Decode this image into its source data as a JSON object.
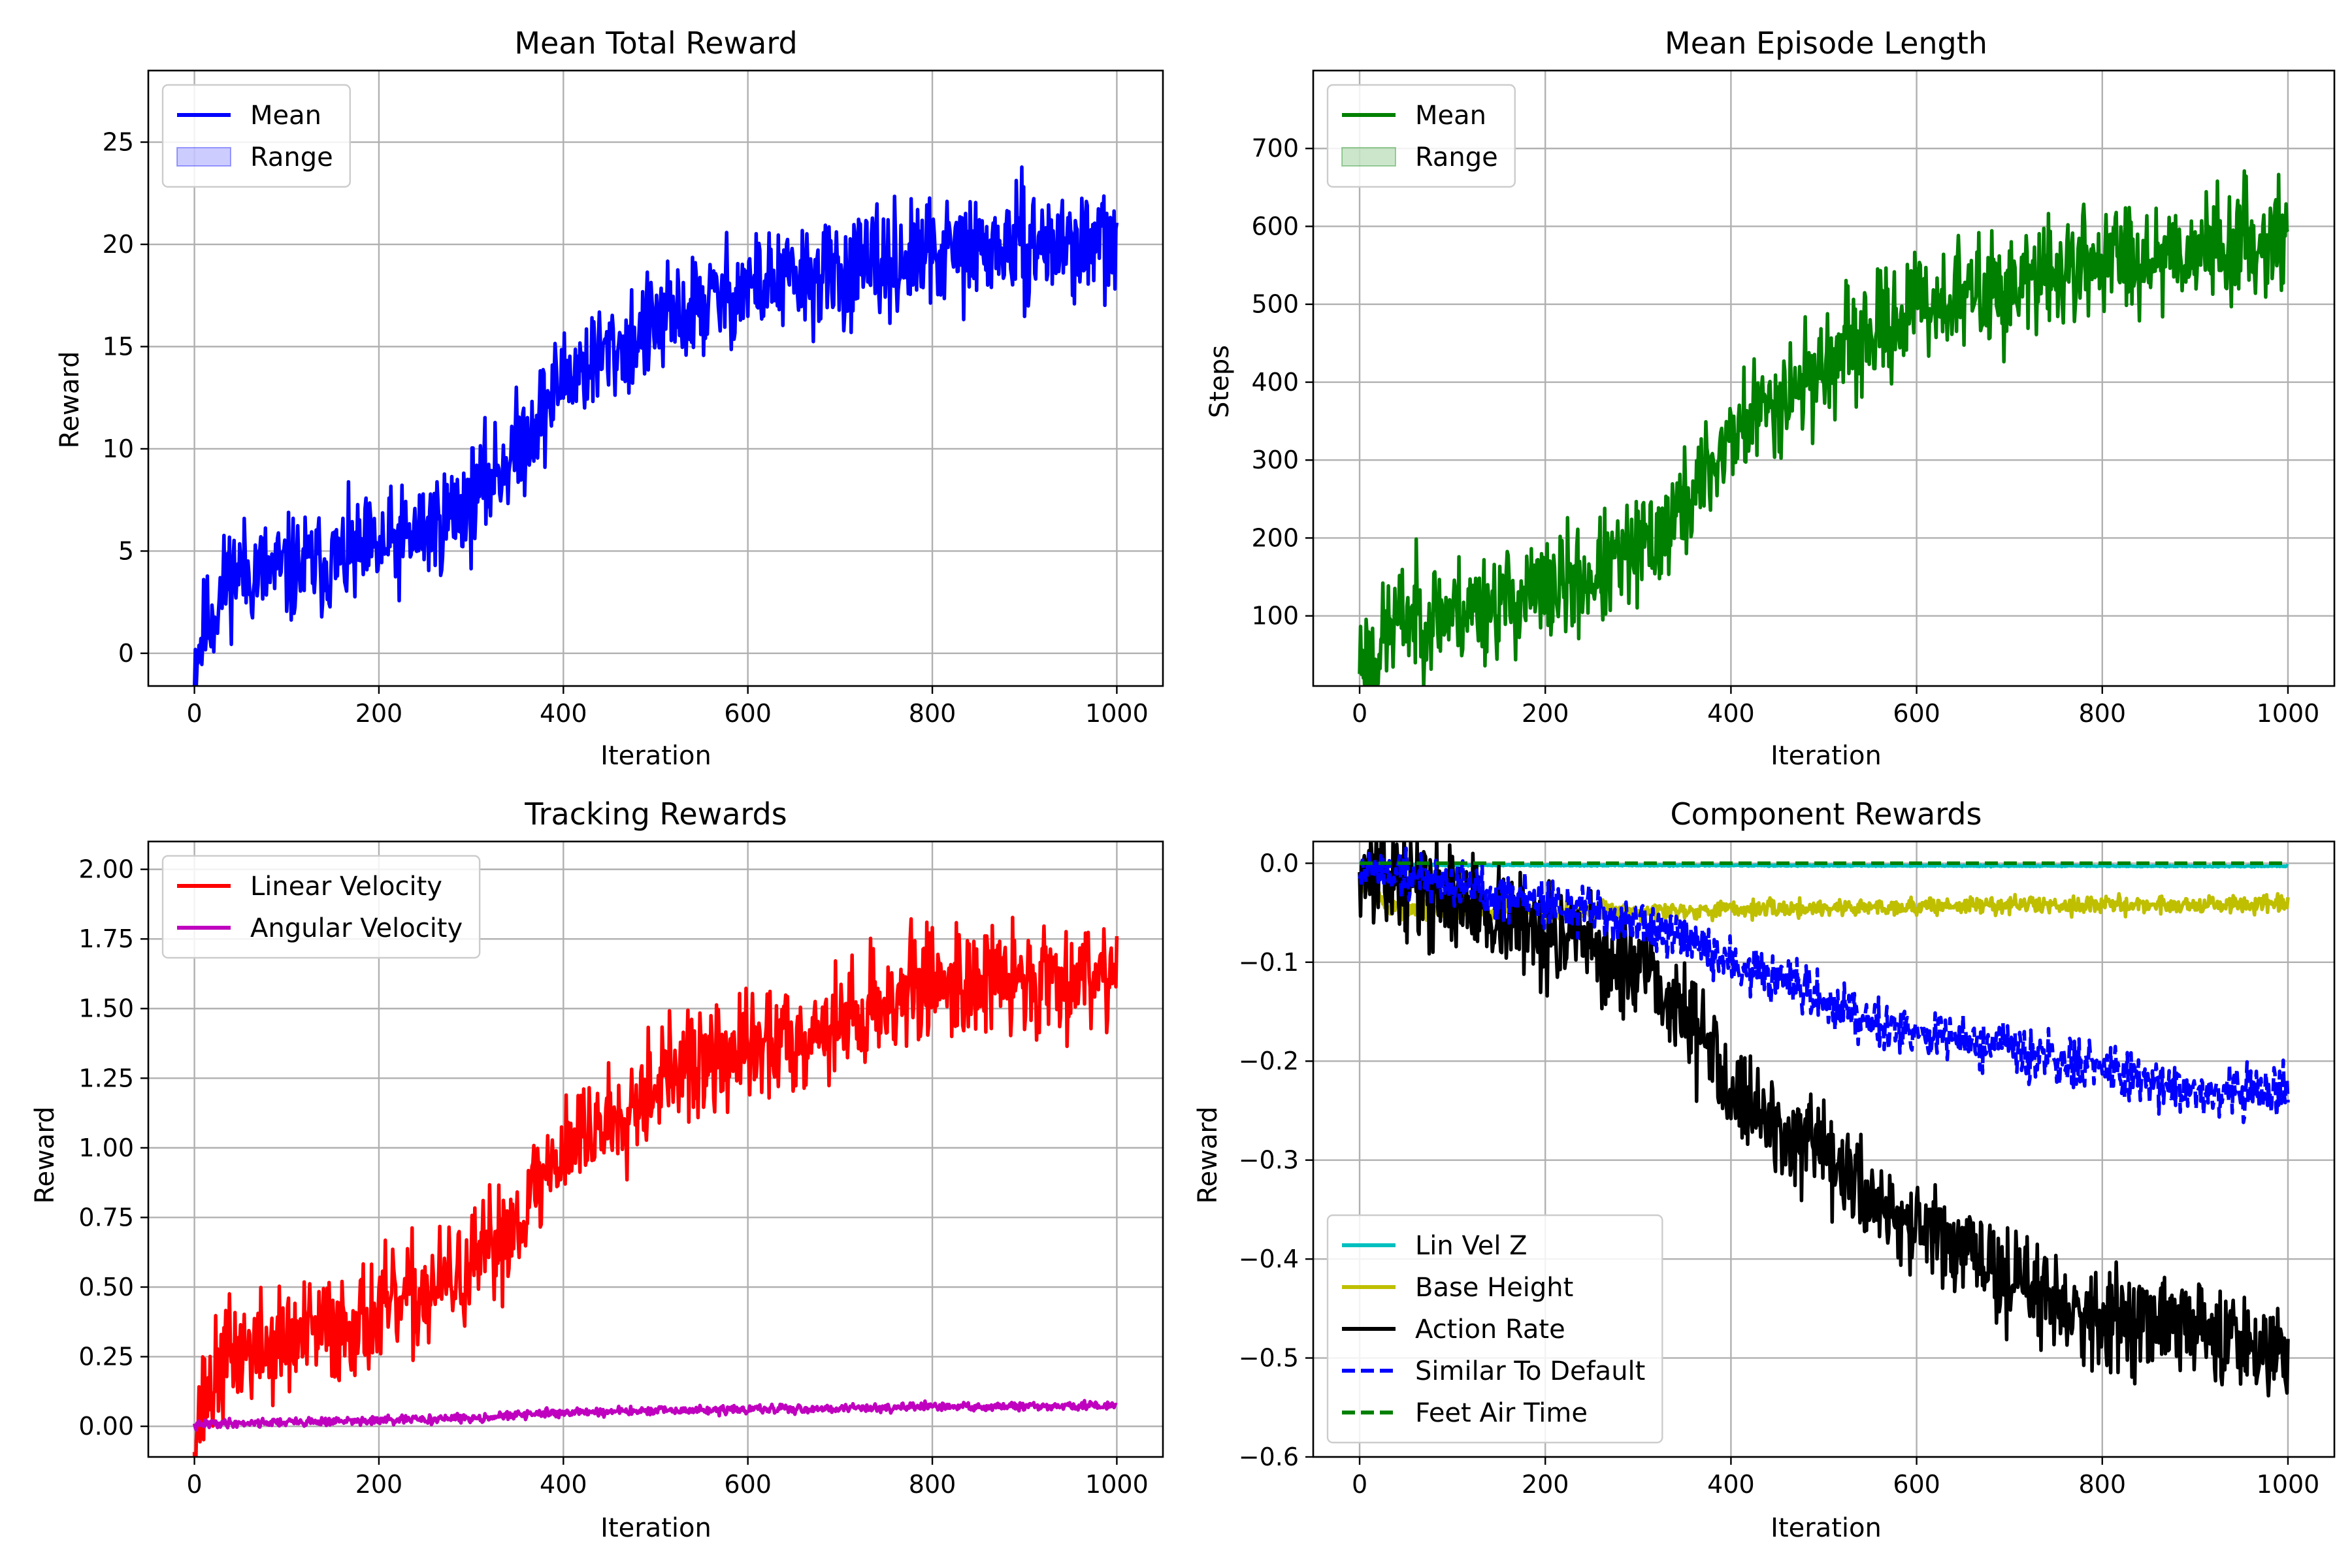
{
  "chart_data": [
    {
      "id": "reward",
      "type": "line",
      "title": "Mean Total Reward",
      "xlabel": "Iteration",
      "ylabel": "Reward",
      "xlim": [
        -50,
        1050
      ],
      "ylim": [
        -1.6,
        28.5
      ],
      "xticks": [
        0,
        200,
        400,
        600,
        800,
        1000
      ],
      "yticks": [
        0,
        5,
        10,
        15,
        20,
        25
      ],
      "grid": true,
      "legend": "top-left",
      "legend_entries": [
        {
          "label": "Mean",
          "kind": "line",
          "color": "#0000ff"
        },
        {
          "label": "Range",
          "kind": "patch",
          "color": "#0000ff"
        }
      ],
      "series": [
        {
          "name": "Mean",
          "color": "#0000ff",
          "dash": "solid",
          "noise": 2.6,
          "seed": 11,
          "x": [
            0,
            10,
            30,
            40,
            100,
            200,
            250,
            300,
            350,
            380,
            400,
            500,
            600,
            700,
            800,
            900,
            1000
          ],
          "values": [
            -0.3,
            1.0,
            3.0,
            4.0,
            4.0,
            5.0,
            6.0,
            7.5,
            10.0,
            12.0,
            13.5,
            16.0,
            18.0,
            18.5,
            19.5,
            20.0,
            20.0
          ]
        }
      ]
    },
    {
      "id": "length",
      "type": "line",
      "title": "Mean Episode Length",
      "xlabel": "Iteration",
      "ylabel": "Steps",
      "xlim": [
        -50,
        1050
      ],
      "ylim": [
        10,
        800
      ],
      "xticks": [
        0,
        200,
        400,
        600,
        800,
        1000
      ],
      "yticks": [
        100,
        200,
        300,
        400,
        500,
        600,
        700
      ],
      "grid": true,
      "legend": "top-left",
      "legend_entries": [
        {
          "label": "Mean",
          "kind": "line",
          "color": "#008000"
        },
        {
          "label": "Range",
          "kind": "patch",
          "color": "#008000"
        }
      ],
      "series": [
        {
          "name": "Mean",
          "color": "#008000",
          "dash": "solid",
          "noise": 70,
          "seed": 23,
          "x": [
            0,
            15,
            30,
            50,
            100,
            200,
            250,
            300,
            350,
            400,
            450,
            500,
            600,
            700,
            800,
            900,
            1000
          ],
          "values": [
            48,
            45,
            80,
            100,
            105,
            130,
            150,
            180,
            240,
            330,
            380,
            420,
            500,
            520,
            560,
            570,
            590
          ]
        }
      ]
    },
    {
      "id": "tracking",
      "type": "line",
      "title": "Tracking Rewards",
      "xlabel": "Iteration",
      "ylabel": "Reward",
      "xlim": [
        -50,
        1050
      ],
      "ylim": [
        -0.11,
        2.1
      ],
      "xticks": [
        0,
        200,
        400,
        600,
        800,
        1000
      ],
      "yticks": [
        0.0,
        0.25,
        0.5,
        0.75,
        1.0,
        1.25,
        1.5,
        1.75,
        2.0
      ],
      "ytick_labels": [
        "0.00",
        "0.25",
        "0.50",
        "0.75",
        "1.00",
        "1.25",
        "1.50",
        "1.75",
        "2.00"
      ],
      "grid": true,
      "legend": "top-left",
      "legend_entries": [
        {
          "label": "Linear Velocity",
          "kind": "line",
          "color": "#ff0000"
        },
        {
          "label": "Angular Velocity",
          "kind": "line",
          "color": "#bf00bf"
        }
      ],
      "series": [
        {
          "name": "Linear Velocity",
          "color": "#ff0000",
          "dash": "solid",
          "noise": 0.2,
          "seed": 37,
          "x": [
            0,
            10,
            20,
            30,
            40,
            100,
            200,
            300,
            350,
            400,
            450,
            500,
            600,
            700,
            800,
            900,
            1000
          ],
          "values": [
            0.0,
            0.08,
            0.15,
            0.22,
            0.26,
            0.3,
            0.4,
            0.55,
            0.75,
            1.0,
            1.1,
            1.25,
            1.35,
            1.45,
            1.6,
            1.6,
            1.65
          ]
        },
        {
          "name": "Angular Velocity",
          "color": "#bf00bf",
          "dash": "solid",
          "noise": 0.015,
          "seed": 41,
          "x": [
            0,
            15,
            100,
            200,
            300,
            400,
            500,
            600,
            700,
            800,
            900,
            1000
          ],
          "values": [
            0.0,
            0.01,
            0.015,
            0.02,
            0.03,
            0.05,
            0.055,
            0.06,
            0.065,
            0.07,
            0.07,
            0.075
          ]
        }
      ]
    },
    {
      "id": "component",
      "type": "line",
      "title": "Component Rewards",
      "xlabel": "Iteration",
      "ylabel": "Reward",
      "xlim": [
        -50,
        1050
      ],
      "ylim": [
        -0.6,
        0.022
      ],
      "xticks": [
        0,
        200,
        400,
        600,
        800,
        1000
      ],
      "yticks": [
        0.0,
        -0.1,
        -0.2,
        -0.3,
        -0.4,
        -0.5,
        -0.6
      ],
      "ytick_labels": [
        "0.0",
        "−0.1",
        "−0.2",
        "−0.3",
        "−0.4",
        "−0.5",
        "−0.6"
      ],
      "grid": true,
      "legend": "bottom-left",
      "legend_entries": [
        {
          "label": "Lin Vel Z",
          "kind": "line",
          "color": "#00bfbf"
        },
        {
          "label": "Base Height",
          "kind": "line",
          "color": "#bfbf00"
        },
        {
          "label": "Action Rate",
          "kind": "line",
          "color": "#000000"
        },
        {
          "label": "Similar To Default",
          "kind": "dashed",
          "color": "#0000ff"
        },
        {
          "label": "Feet Air Time",
          "kind": "dashed",
          "color": "#008000"
        }
      ],
      "series": [
        {
          "name": "Lin Vel Z",
          "color": "#00bfbf",
          "dash": "solid",
          "noise": 0.0006,
          "seed": 5,
          "x": [
            0,
            100,
            1000
          ],
          "values": [
            -0.001,
            -0.002,
            -0.003
          ]
        },
        {
          "name": "Base Height",
          "color": "#bfbf00",
          "dash": "solid",
          "noise": 0.009,
          "seed": 7,
          "x": [
            0,
            10,
            20,
            30,
            100,
            300,
            500,
            700,
            900,
            1000
          ],
          "values": [
            -0.02,
            -0.02,
            -0.035,
            -0.045,
            -0.048,
            -0.048,
            -0.045,
            -0.042,
            -0.042,
            -0.042
          ]
        },
        {
          "name": "Action Rate",
          "color": "#000000",
          "dash": "solid",
          "noise": 0.05,
          "seed": 13,
          "x": [
            0,
            100,
            200,
            300,
            350,
            400,
            450,
            500,
            600,
            700,
            800,
            900,
            1000
          ],
          "values": [
            -0.005,
            -0.035,
            -0.07,
            -0.11,
            -0.15,
            -0.22,
            -0.27,
            -0.3,
            -0.37,
            -0.42,
            -0.46,
            -0.47,
            -0.49
          ]
        },
        {
          "name": "Similar To Default",
          "color": "#0000ff",
          "dash": "dashed",
          "noise": 0.025,
          "seed": 19,
          "x": [
            0,
            100,
            200,
            300,
            400,
            500,
            600,
            700,
            800,
            900,
            1000
          ],
          "values": [
            -0.005,
            -0.02,
            -0.04,
            -0.06,
            -0.1,
            -0.14,
            -0.17,
            -0.19,
            -0.21,
            -0.23,
            -0.23
          ]
        },
        {
          "name": "Feet Air Time",
          "color": "#008000",
          "dash": "dashed",
          "noise": 0.0,
          "seed": 3,
          "x": [
            0,
            1000
          ],
          "values": [
            0.0,
            0.0
          ]
        }
      ]
    }
  ]
}
